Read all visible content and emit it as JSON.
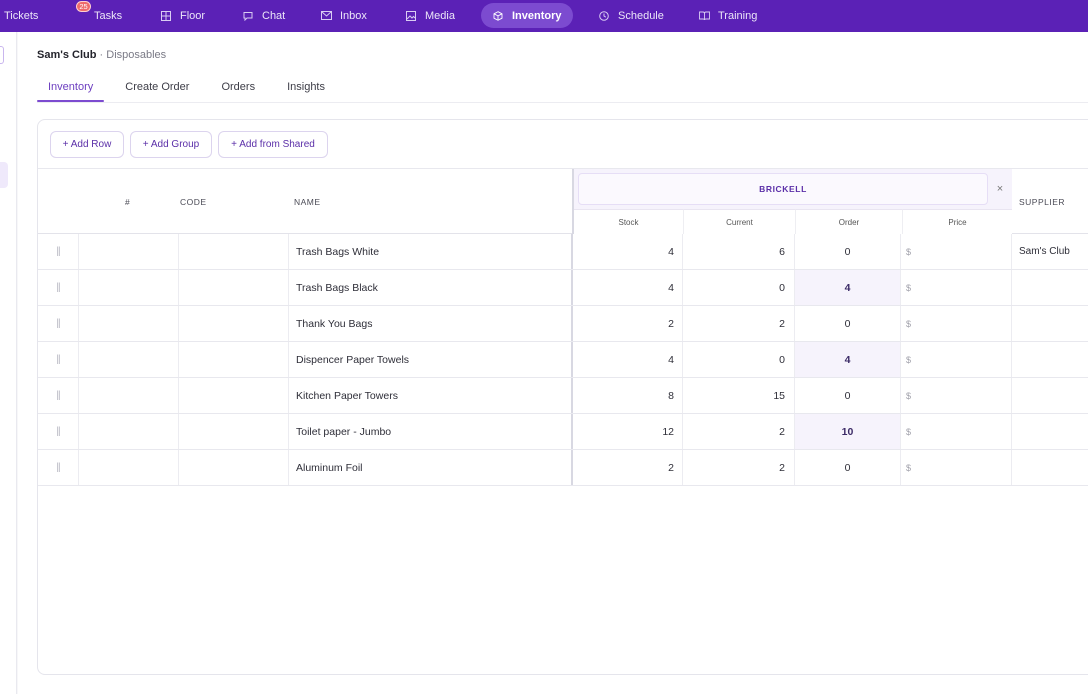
{
  "nav": {
    "items": [
      {
        "label": "Tickets",
        "icon": "none",
        "active": false
      },
      {
        "label": "Tasks",
        "icon": "tasks-icon",
        "badge": "25",
        "active": false
      },
      {
        "label": "Floor",
        "icon": "floor-icon",
        "active": false
      },
      {
        "label": "Chat",
        "icon": "chat-icon",
        "active": false
      },
      {
        "label": "Inbox",
        "icon": "inbox-icon",
        "active": false
      },
      {
        "label": "Media",
        "icon": "media-icon",
        "active": false
      },
      {
        "label": "Inventory",
        "icon": "cube-icon",
        "active": true
      },
      {
        "label": "Schedule",
        "icon": "clock-icon",
        "active": false
      },
      {
        "label": "Training",
        "icon": "book-icon",
        "active": false
      }
    ]
  },
  "breadcrumb": {
    "store": "Sam's Club",
    "sep": " · ",
    "category": "Disposables"
  },
  "tabs": [
    {
      "label": "Inventory",
      "active": true
    },
    {
      "label": "Create Order",
      "active": false
    },
    {
      "label": "Orders",
      "active": false
    },
    {
      "label": "Insights",
      "active": false
    }
  ],
  "toolbar": {
    "add_row": "+ Add Row",
    "add_group": "+ Add Group",
    "add_shared": "+ Add from Shared"
  },
  "table": {
    "headers": {
      "hash": "#",
      "code": "CODE",
      "name": "NAME",
      "supplier": "SUPPLIER"
    },
    "location": {
      "name": "BRICKELL",
      "close": "×",
      "sub": {
        "stock": "Stock",
        "current": "Current",
        "order": "Order",
        "price": "Price"
      }
    },
    "rows": [
      {
        "name": "Trash Bags White",
        "stock": "4",
        "current": "6",
        "order": "0",
        "highlight": false,
        "price": "$",
        "supplier": "Sam's Club"
      },
      {
        "name": "Trash Bags Black",
        "stock": "4",
        "current": "0",
        "order": "4",
        "highlight": true,
        "price": "$",
        "supplier": ""
      },
      {
        "name": "Thank You Bags",
        "stock": "2",
        "current": "2",
        "order": "0",
        "highlight": false,
        "price": "$",
        "supplier": ""
      },
      {
        "name": "Dispencer Paper Towels",
        "stock": "4",
        "current": "0",
        "order": "4",
        "highlight": true,
        "price": "$",
        "supplier": ""
      },
      {
        "name": "Kitchen Paper Towers",
        "stock": "8",
        "current": "15",
        "order": "0",
        "highlight": false,
        "price": "$",
        "supplier": ""
      },
      {
        "name": "Toilet paper - Jumbo",
        "stock": "12",
        "current": "2",
        "order": "10",
        "highlight": true,
        "price": "$",
        "supplier": ""
      },
      {
        "name": "Aluminum Foil",
        "stock": "2",
        "current": "2",
        "order": "0",
        "highlight": false,
        "price": "$",
        "supplier": ""
      }
    ]
  },
  "colors": {
    "accent": "#5b21b6",
    "active_pill": "#7c4bd0",
    "badge": "#ef6b6b",
    "highlight": "#f6f3fc"
  }
}
